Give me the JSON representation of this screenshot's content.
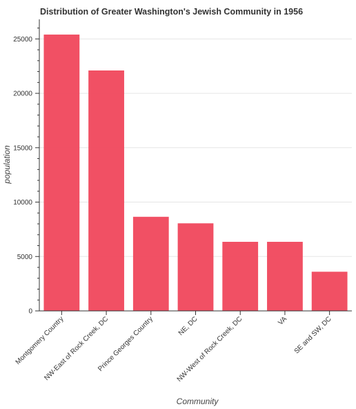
{
  "chart_data": {
    "type": "bar",
    "title": "Distribution of Greater Washington's Jewish Community in 1956",
    "xlabel": "Community",
    "ylabel": "population",
    "categories": [
      "Montgomery Country",
      "NW-East of Rock Creek, DC",
      "Prince Georges Country",
      "NE, DC",
      "NW-West of Rock Creek, DC",
      "VA",
      "SE and SW, DC"
    ],
    "values": [
      25400,
      22100,
      8650,
      8050,
      6350,
      6350,
      3600
    ],
    "ylim": [
      0,
      26800
    ],
    "yticks": [
      0,
      5000,
      10000,
      15000,
      20000,
      25000
    ],
    "bar_color": "#f0475c",
    "grid": "horizontal",
    "legend": "none"
  }
}
